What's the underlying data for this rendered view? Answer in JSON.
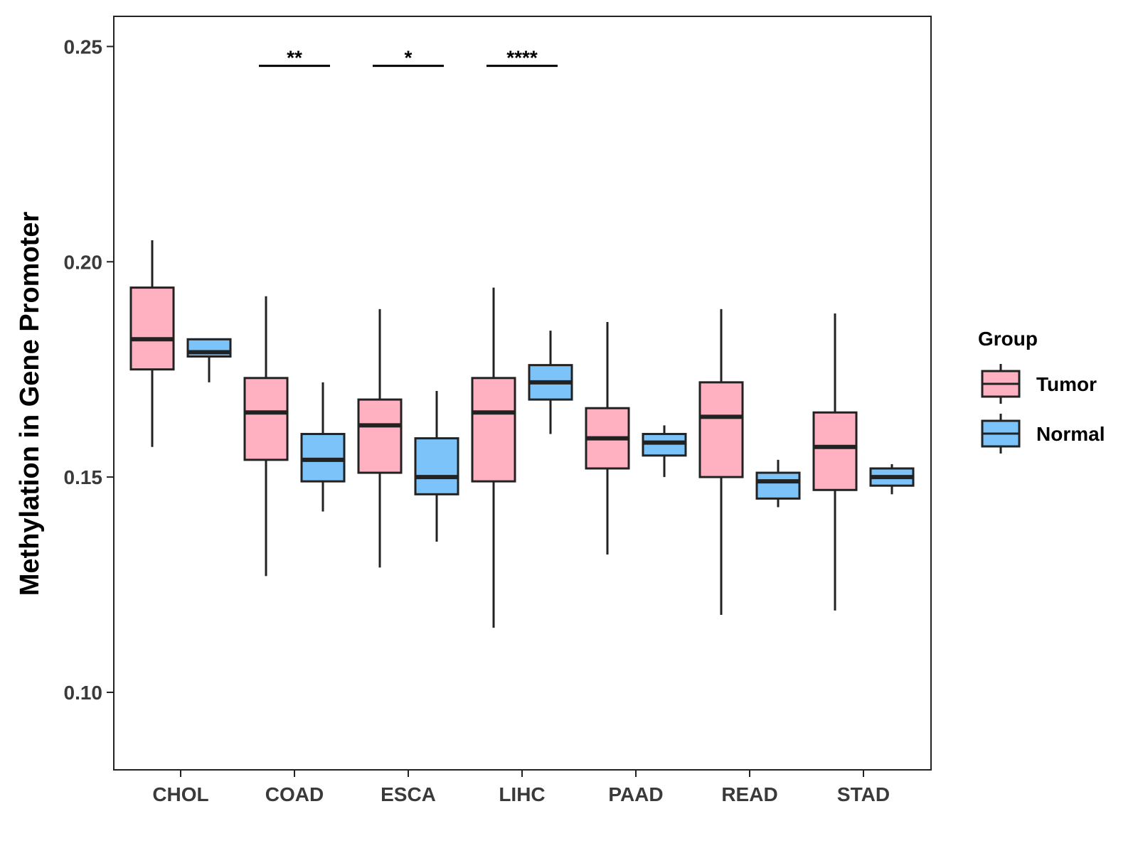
{
  "chart_data": {
    "type": "boxplot",
    "title": "",
    "xlabel": "",
    "ylabel": "Methylation in Gene Promoter",
    "ylim": [
      0.082,
      0.257
    ],
    "yticks": [
      "0.10",
      "0.15",
      "0.20",
      "0.25"
    ],
    "ytick_values": [
      0.1,
      0.15,
      0.2,
      0.25
    ],
    "categories": [
      "CHOL",
      "COAD",
      "ESCA",
      "LIHC",
      "PAAD",
      "READ",
      "STAD"
    ],
    "legend": {
      "title": "Group",
      "position": "right",
      "entries": [
        {
          "name": "Tumor",
          "color": "#FFB0C1"
        },
        {
          "name": "Normal",
          "color": "#7BC3F8"
        }
      ]
    },
    "series": [
      {
        "name": "Tumor",
        "color": "#FFB0C1",
        "boxes": [
          {
            "category": "CHOL",
            "min": 0.157,
            "q1": 0.175,
            "median": 0.182,
            "q3": 0.194,
            "max": 0.205
          },
          {
            "category": "COAD",
            "min": 0.127,
            "q1": 0.154,
            "median": 0.165,
            "q3": 0.173,
            "max": 0.192
          },
          {
            "category": "ESCA",
            "min": 0.129,
            "q1": 0.151,
            "median": 0.162,
            "q3": 0.168,
            "max": 0.189
          },
          {
            "category": "LIHC",
            "min": 0.115,
            "q1": 0.149,
            "median": 0.165,
            "q3": 0.173,
            "max": 0.194
          },
          {
            "category": "PAAD",
            "min": 0.132,
            "q1": 0.152,
            "median": 0.159,
            "q3": 0.166,
            "max": 0.186
          },
          {
            "category": "READ",
            "min": 0.118,
            "q1": 0.15,
            "median": 0.164,
            "q3": 0.172,
            "max": 0.189
          },
          {
            "category": "STAD",
            "min": 0.119,
            "q1": 0.147,
            "median": 0.157,
            "q3": 0.165,
            "max": 0.188
          }
        ]
      },
      {
        "name": "Normal",
        "color": "#7BC3F8",
        "boxes": [
          {
            "category": "CHOL",
            "min": 0.172,
            "q1": 0.178,
            "median": 0.179,
            "q3": 0.182,
            "max": 0.182
          },
          {
            "category": "COAD",
            "min": 0.142,
            "q1": 0.149,
            "median": 0.154,
            "q3": 0.16,
            "max": 0.172
          },
          {
            "category": "ESCA",
            "min": 0.135,
            "q1": 0.146,
            "median": 0.15,
            "q3": 0.159,
            "max": 0.17
          },
          {
            "category": "LIHC",
            "min": 0.16,
            "q1": 0.168,
            "median": 0.172,
            "q3": 0.176,
            "max": 0.184
          },
          {
            "category": "PAAD",
            "min": 0.15,
            "q1": 0.155,
            "median": 0.158,
            "q3": 0.16,
            "max": 0.162
          },
          {
            "category": "READ",
            "min": 0.143,
            "q1": 0.145,
            "median": 0.149,
            "q3": 0.151,
            "max": 0.154
          },
          {
            "category": "STAD",
            "min": 0.146,
            "q1": 0.148,
            "median": 0.15,
            "q3": 0.152,
            "max": 0.153
          }
        ]
      }
    ],
    "annotations": [
      {
        "category": "COAD",
        "label": "**",
        "y": 0.2455
      },
      {
        "category": "ESCA",
        "label": "*",
        "y": 0.2455
      },
      {
        "category": "LIHC",
        "label": "****",
        "y": 0.2455
      }
    ]
  }
}
